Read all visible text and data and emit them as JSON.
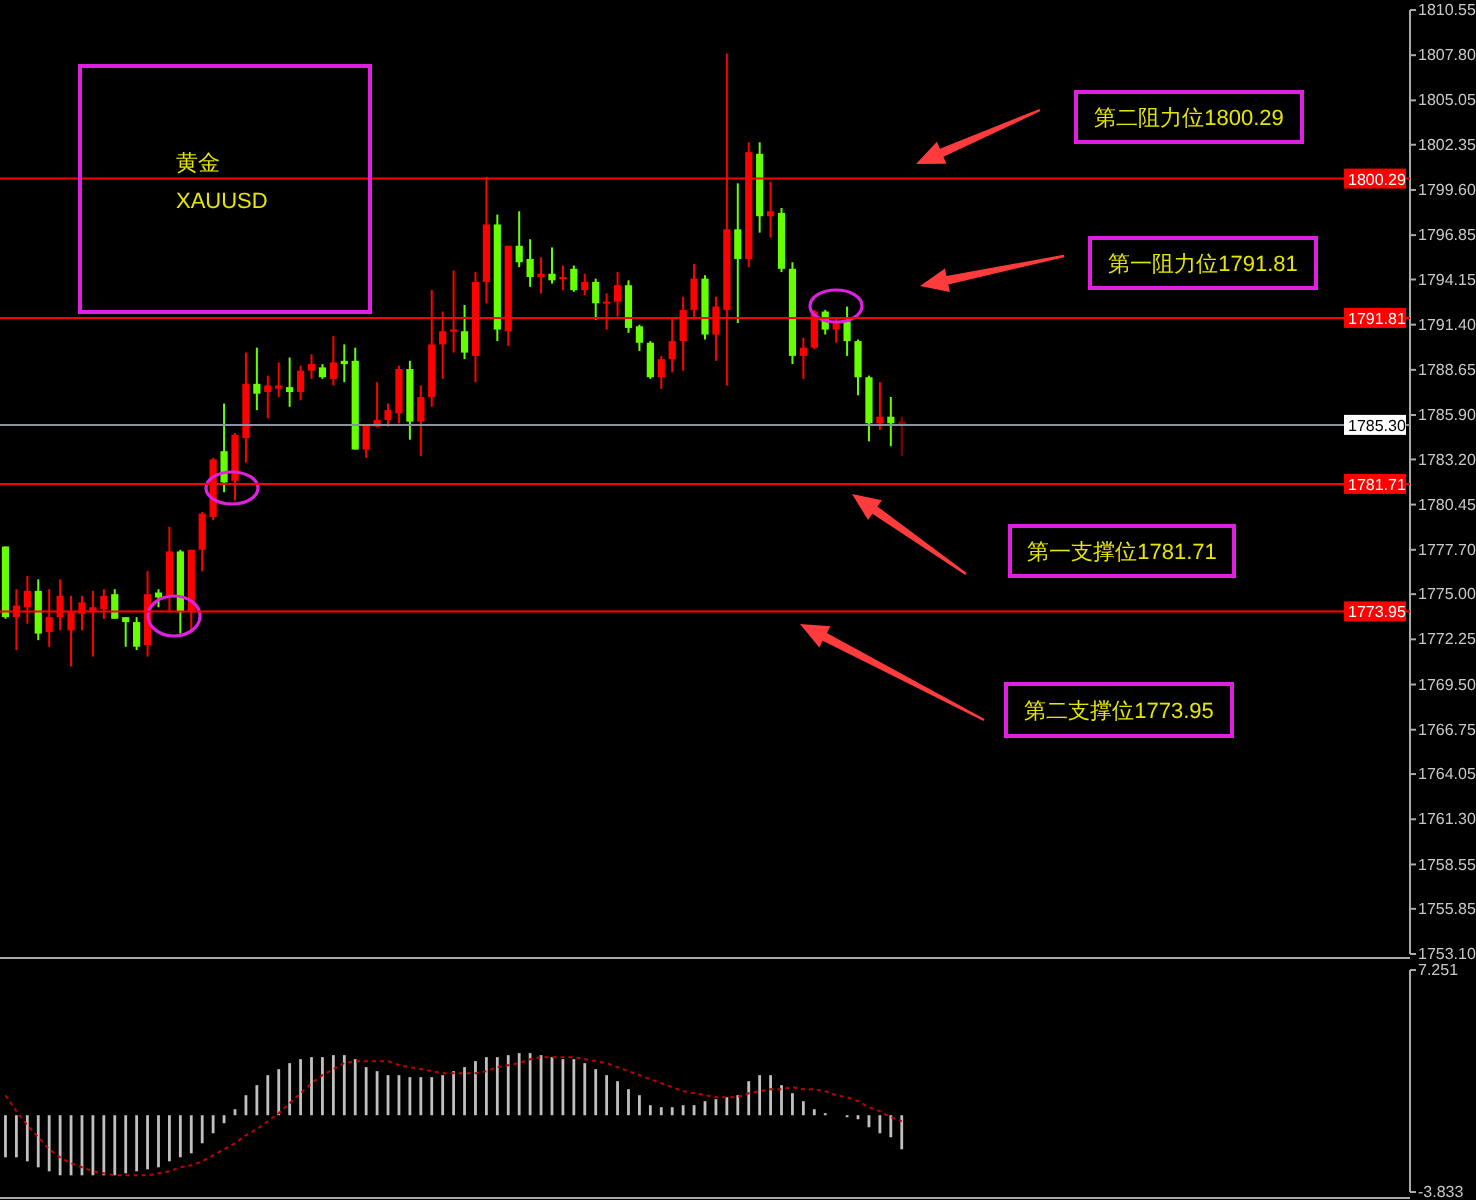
{
  "chart_data": [
    {
      "type": "candlestick",
      "categories": [
        null,
        null,
        null,
        null,
        null,
        null,
        null,
        null,
        null,
        null,
        null,
        null,
        null,
        null,
        null,
        null,
        null,
        null,
        null,
        null,
        null,
        null,
        null,
        null,
        null,
        null,
        null,
        null,
        null,
        null,
        null,
        null,
        null,
        null,
        null,
        null,
        null,
        null,
        null,
        null,
        null,
        null,
        null,
        null,
        null,
        null,
        null,
        null,
        null,
        null,
        null,
        null,
        null,
        null,
        null,
        null,
        null,
        null,
        null,
        null,
        null,
        null,
        null,
        null,
        null,
        null,
        null,
        null,
        null,
        null,
        null,
        null,
        null,
        null,
        null,
        null,
        null,
        null,
        null,
        null,
        null,
        null,
        null,
        null,
        null,
        null,
        null,
        null,
        null,
        null,
        null,
        null,
        null,
        null,
        null,
        null,
        null,
        null,
        null,
        null,
        null,
        null,
        null,
        null,
        null,
        null,
        null,
        null,
        null,
        null,
        null,
        null,
        null,
        null,
        null,
        null,
        null,
        null,
        null,
        null,
        null,
        null,
        null,
        null,
        null,
        null,
        null,
        null,
        null
      ],
      "ohlc": [
        [
          1777.9,
          1777.9,
          1773.5,
          1773.6
        ],
        [
          1773.6,
          1775.3,
          1771.6,
          1774.3
        ],
        [
          1774.2,
          1776.1,
          1773.2,
          1775.2
        ],
        [
          1775.2,
          1775.9,
          1772.2,
          1772.6
        ],
        [
          1772.7,
          1775.3,
          1771.8,
          1773.6
        ],
        [
          1773.6,
          1775.9,
          1772.8,
          1774.9
        ],
        [
          1772.8,
          1774.9,
          1770.6,
          1773.9
        ],
        [
          1773.8,
          1774.9,
          1772.8,
          1774.5
        ],
        [
          1773.9,
          1775.2,
          1771.2,
          1774.2
        ],
        [
          1774.1,
          1775.3,
          1773.5,
          1774.9
        ],
        [
          1775.0,
          1775.3,
          1773.5,
          1773.5
        ],
        [
          1773.6,
          1773.6,
          1771.8,
          1773.3
        ],
        [
          1773.3,
          1773.6,
          1771.6,
          1771.8
        ],
        [
          1771.9,
          1776.4,
          1771.2,
          1775.0
        ],
        [
          1775.1,
          1775.3,
          1774.2,
          1774.8
        ],
        [
          1774.9,
          1779.1,
          1773.9,
          1777.6
        ],
        [
          1777.6,
          1777.7,
          1772.6,
          1773.9
        ],
        [
          1773.9,
          1777.7,
          1772.8,
          1777.7
        ],
        [
          1777.7,
          1780.0,
          1776.4,
          1779.9
        ],
        [
          1779.7,
          1783.3,
          1779.5,
          1783.2
        ],
        [
          1783.7,
          1786.6,
          1781.2,
          1781.8
        ],
        [
          1781.9,
          1784.8,
          1780.7,
          1784.7
        ],
        [
          1784.5,
          1789.7,
          1783.0,
          1787.8
        ],
        [
          1787.8,
          1790.0,
          1786.2,
          1787.2
        ],
        [
          1787.3,
          1788.3,
          1785.7,
          1787.7
        ],
        [
          1787.5,
          1789.1,
          1787.0,
          1787.7
        ],
        [
          1787.6,
          1789.4,
          1786.4,
          1787.3
        ],
        [
          1787.3,
          1788.9,
          1786.8,
          1788.6
        ],
        [
          1788.6,
          1789.6,
          1788.1,
          1789.0
        ],
        [
          1788.8,
          1789.0,
          1788.1,
          1788.2
        ],
        [
          1788.1,
          1790.7,
          1787.7,
          1789.1
        ],
        [
          1789.2,
          1790.2,
          1787.9,
          1789.0
        ],
        [
          1789.2,
          1790.0,
          1783.8,
          1783.8
        ],
        [
          1783.8,
          1785.3,
          1783.3,
          1785.3
        ],
        [
          1785.2,
          1787.9,
          1785.2,
          1785.6
        ],
        [
          1785.6,
          1786.6,
          1785.2,
          1786.2
        ],
        [
          1786.0,
          1788.9,
          1785.4,
          1788.7
        ],
        [
          1788.7,
          1789.2,
          1784.4,
          1785.5
        ],
        [
          1785.5,
          1787.7,
          1783.4,
          1787.0
        ],
        [
          1787.0,
          1793.5,
          1786.4,
          1790.2
        ],
        [
          1790.2,
          1792.2,
          1788.1,
          1791.0
        ],
        [
          1791.0,
          1794.7,
          1789.7,
          1791.1
        ],
        [
          1791.0,
          1792.6,
          1789.3,
          1789.7
        ],
        [
          1789.5,
          1794.6,
          1787.9,
          1794.0
        ],
        [
          1794.0,
          1800.4,
          1792.7,
          1797.5
        ],
        [
          1797.5,
          1798.1,
          1790.4,
          1791.1
        ],
        [
          1791.0,
          1796.2,
          1790.1,
          1796.2
        ],
        [
          1796.2,
          1798.3,
          1794.9,
          1795.2
        ],
        [
          1795.4,
          1796.6,
          1793.7,
          1794.3
        ],
        [
          1794.3,
          1795.5,
          1793.3,
          1794.5
        ],
        [
          1794.5,
          1796.1,
          1793.9,
          1794.1
        ],
        [
          1794.2,
          1795.0,
          1793.5,
          1794.3
        ],
        [
          1794.8,
          1795.0,
          1793.4,
          1793.5
        ],
        [
          1793.5,
          1794.5,
          1793.2,
          1794.0
        ],
        [
          1794.0,
          1794.2,
          1791.7,
          1792.7
        ],
        [
          1792.7,
          1793.3,
          1791.1,
          1792.8
        ],
        [
          1792.8,
          1794.6,
          1791.9,
          1793.8
        ],
        [
          1793.8,
          1794.1,
          1790.9,
          1791.2
        ],
        [
          1791.3,
          1791.4,
          1789.8,
          1790.3
        ],
        [
          1790.3,
          1790.4,
          1788.1,
          1788.2
        ],
        [
          1788.2,
          1789.5,
          1787.5,
          1789.3
        ],
        [
          1789.3,
          1791.8,
          1788.5,
          1790.4
        ],
        [
          1790.4,
          1793.1,
          1788.6,
          1792.3
        ],
        [
          1792.3,
          1795.1,
          1791.7,
          1794.2
        ],
        [
          1794.2,
          1794.4,
          1790.5,
          1790.8
        ],
        [
          1790.8,
          1793.1,
          1789.2,
          1792.5
        ],
        [
          1792.3,
          1807.9,
          1787.7,
          1797.2
        ],
        [
          1797.2,
          1800.0,
          1791.5,
          1795.4
        ],
        [
          1795.4,
          1802.5,
          1794.9,
          1801.9
        ],
        [
          1801.8,
          1802.5,
          1797.0,
          1798.0
        ],
        [
          1798.0,
          1800.1,
          1796.7,
          1798.3
        ],
        [
          1798.2,
          1798.5,
          1794.6,
          1794.8
        ],
        [
          1794.8,
          1795.2,
          1789.0,
          1789.5
        ],
        [
          1789.5,
          1790.6,
          1788.1,
          1790.0
        ],
        [
          1790.0,
          1792.3,
          1789.9,
          1792.2
        ],
        [
          1792.2,
          1792.3,
          1790.8,
          1791.1
        ],
        [
          1791.1,
          1791.8,
          1790.3,
          1791.6
        ],
        [
          1791.6,
          1792.5,
          1789.5,
          1790.4
        ],
        [
          1790.4,
          1790.5,
          1787.1,
          1788.2
        ],
        [
          1788.2,
          1788.3,
          1784.3,
          1785.4
        ],
        [
          1785.4,
          1787.9,
          1785.0,
          1785.8
        ],
        [
          1785.8,
          1787.0,
          1784.0,
          1785.4
        ],
        [
          1785.5,
          1785.8,
          1783.4,
          1785.3
        ],
        null,
        null,
        null,
        null,
        null,
        null,
        null,
        null,
        null,
        null,
        null,
        null,
        null,
        null,
        null,
        null,
        null,
        null,
        null,
        null,
        null,
        null,
        null,
        null,
        null,
        null,
        null,
        null,
        null,
        null,
        null,
        null,
        null,
        null,
        null,
        null,
        null,
        null,
        null,
        null,
        null,
        null,
        null,
        null,
        null,
        null
      ],
      "colors": [
        "#66ff00",
        "#ff0000",
        "#ff0000",
        "#66ff00",
        "#ff0000",
        "#ff0000",
        "#ff0000",
        "#ff0000",
        "#ff0000",
        "#ff0000",
        "#66ff00",
        "#66ff00",
        "#66ff00",
        "#ff0000",
        "#66ff00",
        "#ff0000",
        "#66ff00",
        "#ff0000",
        "#ff0000",
        "#ff0000",
        "#66ff00",
        "#ff0000",
        "#ff0000",
        "#66ff00",
        "#ff0000",
        "#ff0000",
        "#66ff00",
        "#ff0000",
        "#ff0000",
        "#66ff00",
        "#ff0000",
        "#66ff00",
        "#66ff00",
        "#ff0000",
        "#ff0000",
        "#ff0000",
        "#ff0000",
        "#66ff00",
        "#ff0000",
        "#ff0000",
        "#ff0000",
        "#ff0000",
        "#66ff00",
        "#ff0000",
        "#ff0000",
        "#66ff00",
        "#ff0000",
        "#66ff00",
        "#66ff00",
        "#ff0000",
        "#66ff00",
        "#ff0000",
        "#66ff00",
        "#ff0000",
        "#66ff00",
        "#ff0000",
        "#ff0000",
        "#66ff00",
        "#66ff00",
        "#66ff00",
        "#ff0000",
        "#ff0000",
        "#ff0000",
        "#ff0000",
        "#66ff00",
        "#ff0000",
        "#ff0000",
        "#66ff00",
        "#ff0000",
        "#66ff00",
        "#ff0000",
        "#66ff00",
        "#66ff00",
        "#ff0000",
        "#ff0000",
        "#66ff00",
        "#ff0000",
        "#66ff00",
        "#66ff00",
        "#66ff00",
        "#ff0000",
        "#66ff00",
        "#8b0000",
        null,
        null,
        null,
        null,
        null,
        null,
        null,
        null,
        null,
        null,
        null,
        null,
        null,
        null,
        null,
        null,
        null,
        null,
        null,
        null,
        null,
        null,
        null,
        null,
        null,
        null,
        null,
        null,
        null,
        null,
        null,
        null,
        null,
        null,
        null,
        null,
        null,
        null,
        null,
        null,
        null,
        null,
        null,
        null,
        null,
        null
      ],
      "ylim": [
        1753.1,
        1810.55
      ],
      "yticks": [
        {
          "value": 1753.1,
          "label": "1753.10"
        },
        1755.85,
        1758.55,
        {
          "value": 1761.3,
          "label": "1761.30"
        },
        1764.05,
        1766.75,
        {
          "value": 1769.5,
          "label": "1769.50"
        },
        1772.25,
        {
          "value": 1775,
          "label": "1775.00"
        },
        {
          "value": 1777.7,
          "label": "1777.70"
        },
        1780.45,
        {
          "value": 1783.2,
          "label": "1783.20"
        },
        {
          "value": 1785.9,
          "label": "1785.90"
        },
        1788.65,
        {
          "value": 1791.4,
          "label": "1791.40"
        },
        1794.15,
        1796.85,
        {
          "value": 1799.6,
          "label": "1799.60"
        },
        1802.35,
        1805.05,
        {
          "value": 1807.8,
          "label": "1807.80"
        },
        1810.55
      ],
      "ref_lines": [
        {
          "axis": "y",
          "value": 1800.29,
          "label": "1800.29",
          "color": "#ff0000"
        },
        {
          "axis": "y",
          "value": 1791.81,
          "label": "1791.81",
          "color": "#ff0000"
        },
        {
          "axis": "y",
          "value": 1785.3,
          "label": "1785.30",
          "color": "#8a94a0"
        },
        {
          "axis": "y",
          "value": 1781.71,
          "label": "1781.71",
          "color": "#ff0000"
        },
        {
          "axis": "y",
          "value": 1773.95,
          "label": "1773.95",
          "color": "#ff0000"
        }
      ],
      "annotations": [
        "黄金",
        "XAUUSD",
        "第二阻力位1800.29",
        "第一阻力位1791.81",
        "第一支撑位1781.71",
        "第二支撑位1773.95"
      ],
      "tick_labels": "y",
      "grid": false
    },
    {
      "type": "bar",
      "categories": [
        null,
        null,
        null,
        null,
        null,
        null,
        null,
        null,
        null,
        null,
        null,
        null,
        null,
        null,
        null,
        null,
        null,
        null,
        null,
        null,
        null,
        null,
        null,
        null,
        null,
        null,
        null,
        null,
        null,
        null,
        null,
        null,
        null,
        null,
        null,
        null,
        null,
        null,
        null,
        null,
        null,
        null,
        null,
        null,
        null,
        null,
        null,
        null,
        null,
        null,
        null,
        null,
        null,
        null,
        null,
        null,
        null,
        null,
        null,
        null,
        null,
        null,
        null,
        null,
        null,
        null,
        null,
        null,
        null,
        null,
        null,
        null,
        null,
        null,
        null,
        null,
        null,
        null,
        null,
        null,
        null,
        null,
        null,
        null,
        null,
        null,
        null,
        null,
        null,
        null,
        null,
        null,
        null,
        null,
        null,
        null,
        null,
        null,
        null,
        null,
        null,
        null,
        null,
        null,
        null,
        null,
        null,
        null,
        null,
        null,
        null,
        null,
        null,
        null,
        null,
        null,
        null,
        null,
        null,
        null,
        null,
        null,
        null,
        null,
        null,
        null,
        null,
        null,
        null
      ],
      "series": [
        {
          "type": "bar",
          "color": "#c0c0c0",
          "values": [
            -2.1,
            -2.1,
            -2.3,
            -2.6,
            -2.8,
            -3.0,
            -3.0,
            -3.0,
            -3.0,
            -3.0,
            -3.0,
            -2.9,
            -2.8,
            -2.7,
            -2.6,
            -2.3,
            -2.1,
            -1.9,
            -1.4,
            -0.9,
            -0.4,
            0.3,
            1.0,
            1.5,
            2.0,
            2.3,
            2.6,
            2.8,
            2.9,
            2.9,
            3.0,
            3.0,
            2.8,
            2.4,
            2.2,
            2.0,
            2.0,
            1.9,
            1.9,
            1.9,
            2.0,
            2.2,
            2.4,
            2.7,
            2.9,
            2.9,
            3.0,
            3.1,
            3.1,
            3.0,
            2.9,
            2.8,
            2.8,
            2.6,
            2.3,
            2.0,
            1.7,
            1.3,
            1.0,
            0.5,
            0.4,
            0.4,
            0.5,
            0.5,
            0.7,
            0.8,
            0.9,
            1.0,
            1.7,
            2.0,
            2.0,
            1.5,
            1.1,
            0.7,
            0.3,
            0.1,
            0,
            -0.1,
            -0.2,
            -0.6,
            -0.9,
            -1.1,
            -1.7,
            null,
            null,
            null,
            null,
            null,
            null,
            null,
            null,
            null,
            null,
            null,
            null,
            null,
            null,
            null,
            null,
            null,
            null,
            null,
            null,
            null,
            null,
            null,
            null,
            null,
            null,
            null,
            null,
            null,
            null,
            null,
            null,
            null,
            null,
            null,
            null,
            null,
            null,
            null,
            null,
            null,
            null,
            null,
            null,
            null,
            null
          ]
        },
        {
          "type": "line",
          "color": "#c00000",
          "values": [
            1.0,
            0.2,
            -0.5,
            -1.1,
            -1.7,
            -2.1,
            -2.4,
            -2.6,
            -2.8,
            -2.9,
            -3.0,
            -3.0,
            -3.0,
            -3.0,
            -2.9,
            -2.8,
            -2.6,
            -2.5,
            -2.3,
            -2.0,
            -1.7,
            -1.4,
            -1.0,
            -0.7,
            -0.3,
            0.1,
            0.6,
            1.1,
            1.6,
            2.0,
            2.3,
            2.6,
            2.7,
            2.7,
            2.7,
            2.7,
            2.5,
            2.4,
            2.3,
            2.2,
            2.1,
            2.1,
            2.1,
            2.1,
            2.2,
            2.4,
            2.5,
            2.6,
            2.8,
            2.9,
            2.9,
            2.9,
            2.9,
            2.8,
            2.7,
            2.6,
            2.4,
            2.2,
            2.0,
            1.8,
            1.6,
            1.4,
            1.2,
            1.1,
            1.0,
            0.9,
            0.9,
            0.9,
            1.1,
            1.2,
            1.3,
            1.3,
            1.4,
            1.3,
            1.3,
            1.2,
            1.0,
            0.9,
            0.7,
            0.4,
            0.2,
            -0.1,
            -0.3,
            null,
            null,
            null,
            null,
            null,
            null,
            null,
            null,
            null,
            null,
            null,
            null,
            null,
            null,
            null,
            null,
            null,
            null,
            null,
            null,
            null,
            null,
            null,
            null,
            null,
            null,
            null,
            null,
            null,
            null,
            null,
            null,
            null,
            null,
            null,
            null,
            null,
            null,
            null,
            null,
            null,
            null,
            null,
            null,
            null,
            null
          ]
        }
      ],
      "line_style": "dotted",
      "ylim": [
        -3.833,
        7.251
      ],
      "yticks": [
        -3.833,
        7.251
      ],
      "tick_labels": "y",
      "grid": false
    }
  ]
}
